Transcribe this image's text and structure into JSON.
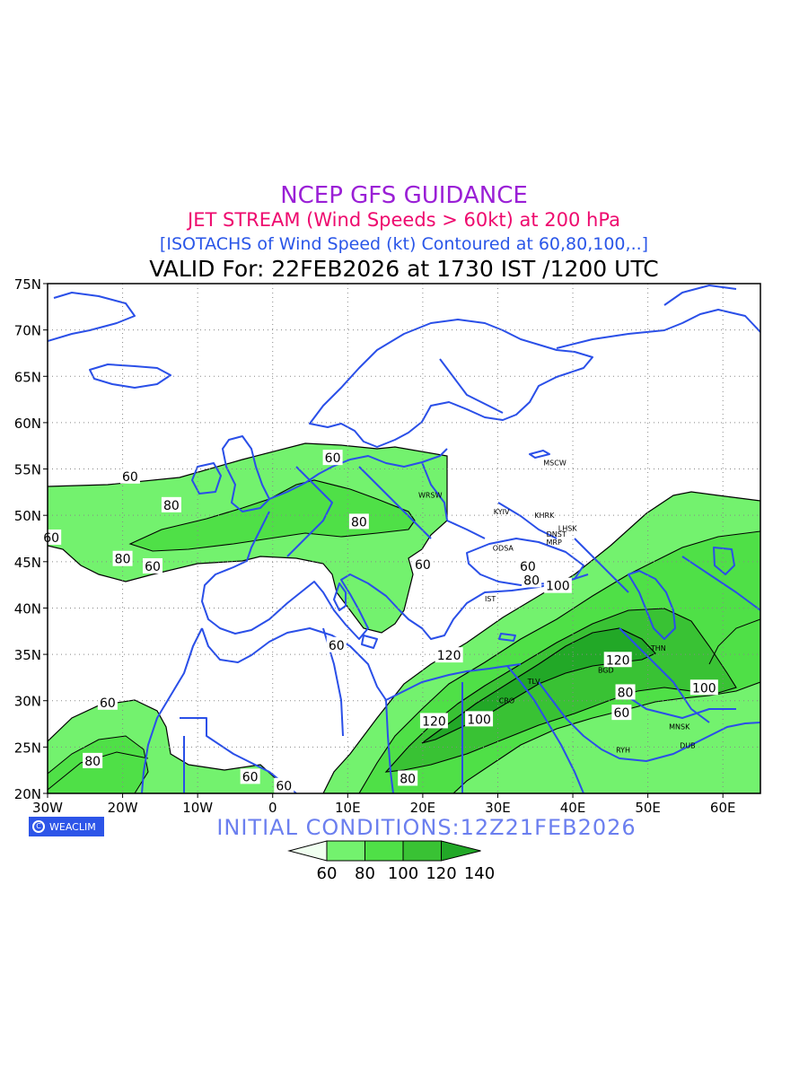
{
  "header": {
    "title": "NCEP GFS GUIDANCE",
    "subtitle": "JET STREAM (Wind Speeds > 60kt) at 200 hPa",
    "description": "[ISOTACHS of Wind Speed (kt) Contoured at 60,80,100,..]",
    "valid": "VALID For: 22FEB2026 at 1730 IST /1200 UTC"
  },
  "axes": {
    "lat_labels": [
      "75N",
      "70N",
      "65N",
      "60N",
      "55N",
      "50N",
      "45N",
      "40N",
      "35N",
      "30N",
      "25N",
      "20N"
    ],
    "lon_labels": [
      "30W",
      "20W",
      "10W",
      "0",
      "10E",
      "20E",
      "30E",
      "40E",
      "50E",
      "60E"
    ],
    "lat_range": [
      20,
      75
    ],
    "lon_range": [
      -30,
      65
    ],
    "grid": "dotted"
  },
  "cities": [
    {
      "name": "MSCW",
      "lon": 37.6,
      "lat": 55.7
    },
    {
      "name": "WRSW",
      "lon": 21.0,
      "lat": 52.2
    },
    {
      "name": "KYIV",
      "lon": 30.5,
      "lat": 50.4
    },
    {
      "name": "KHRK",
      "lon": 36.2,
      "lat": 50.0
    },
    {
      "name": "LHSK",
      "lon": 39.3,
      "lat": 48.6
    },
    {
      "name": "DNST",
      "lon": 37.8,
      "lat": 48.0
    },
    {
      "name": "MRP",
      "lon": 37.5,
      "lat": 47.1
    },
    {
      "name": "ODSA",
      "lon": 30.7,
      "lat": 46.5
    },
    {
      "name": "IST",
      "lon": 29.0,
      "lat": 41.0
    },
    {
      "name": "THN",
      "lon": 51.4,
      "lat": 35.7
    },
    {
      "name": "BGD",
      "lon": 44.4,
      "lat": 33.3
    },
    {
      "name": "TLV",
      "lon": 34.8,
      "lat": 32.1
    },
    {
      "name": "CRO",
      "lon": 31.2,
      "lat": 30.0
    },
    {
      "name": "MNSK",
      "lon": 54.2,
      "lat": 27.2
    },
    {
      "name": "DUB",
      "lon": 55.3,
      "lat": 25.2
    },
    {
      "name": "RYH",
      "lon": 46.7,
      "lat": 24.7
    }
  ],
  "contour_labels": [
    {
      "text": "60",
      "lon": 8.0,
      "lat": 56.2
    },
    {
      "text": "60",
      "lon": -19.0,
      "lat": 54.2
    },
    {
      "text": "80",
      "lon": -13.5,
      "lat": 51.1
    },
    {
      "text": "80",
      "lon": 11.5,
      "lat": 49.3
    },
    {
      "text": "60",
      "lon": -29.5,
      "lat": 47.6
    },
    {
      "text": "80",
      "lon": -20.0,
      "lat": 45.3
    },
    {
      "text": "60",
      "lon": -16.0,
      "lat": 44.5
    },
    {
      "text": "60",
      "lon": 20.0,
      "lat": 44.7
    },
    {
      "text": "60",
      "lon": 34.0,
      "lat": 44.5
    },
    {
      "text": "80",
      "lon": 34.5,
      "lat": 43.0
    },
    {
      "text": "100",
      "lon": 38.0,
      "lat": 42.4
    },
    {
      "text": "60",
      "lon": 8.5,
      "lat": 36.0
    },
    {
      "text": "120",
      "lon": 23.5,
      "lat": 34.9
    },
    {
      "text": "120",
      "lon": 46.0,
      "lat": 34.4
    },
    {
      "text": "100",
      "lon": 57.5,
      "lat": 31.4
    },
    {
      "text": "80",
      "lon": 47.0,
      "lat": 30.9
    },
    {
      "text": "60",
      "lon": 46.5,
      "lat": 28.7
    },
    {
      "text": "100",
      "lon": 27.5,
      "lat": 28.0
    },
    {
      "text": "120",
      "lon": 21.5,
      "lat": 27.8
    },
    {
      "text": "60",
      "lon": -22.0,
      "lat": 29.8
    },
    {
      "text": "80",
      "lon": -24.0,
      "lat": 23.5
    },
    {
      "text": "60",
      "lon": -3.0,
      "lat": 21.8
    },
    {
      "text": "60",
      "lon": 1.5,
      "lat": 20.8
    },
    {
      "text": "80",
      "lon": 18.0,
      "lat": 21.6
    }
  ],
  "legend": {
    "labels": [
      "60",
      "80",
      "100",
      "120",
      "140"
    ],
    "colors": [
      "#f0fff0",
      "#73f26e",
      "#4fe047",
      "#39c234",
      "#22a827"
    ]
  },
  "footer": {
    "initial_conditions": "INITIAL  CONDITIONS:12Z21FEB2026",
    "brand": "WEACLIM"
  },
  "colors": {
    "coast": "#2a4fe8",
    "contour": "#000000",
    "shade_60": "#73f26e",
    "shade_80": "#4fe047",
    "shade_100": "#39c234",
    "shade_120": "#22a827"
  }
}
